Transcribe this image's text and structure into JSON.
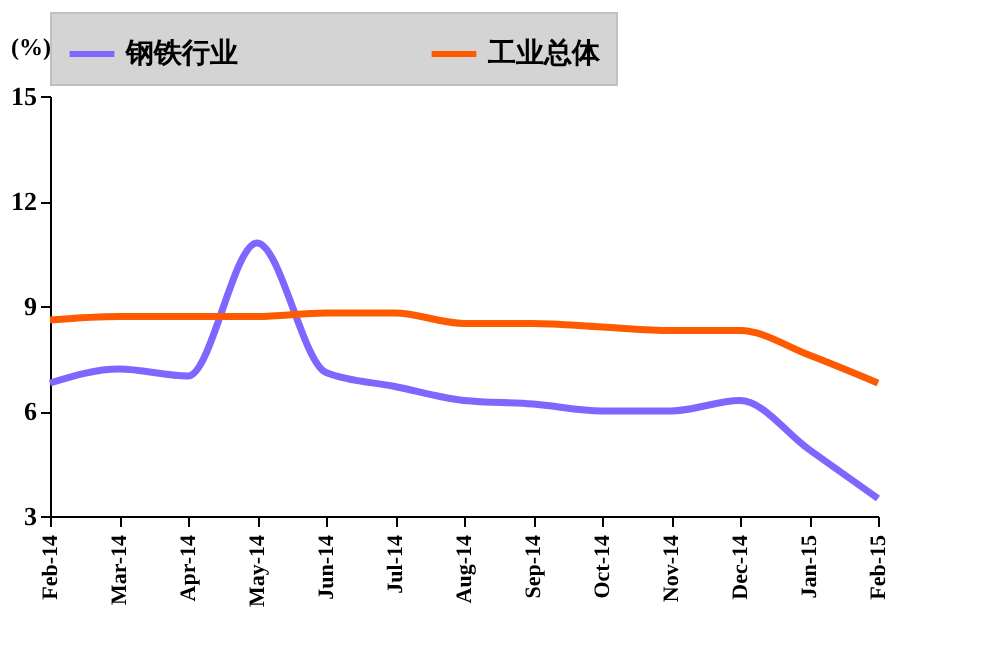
{
  "chart_data": {
    "type": "line",
    "ylabel": "(%)",
    "categories": [
      "Feb-14",
      "Mar-14",
      "Apr-14",
      "May-14",
      "Jun-14",
      "Jul-14",
      "Aug-14",
      "Sep-14",
      "Oct-14",
      "Nov-14",
      "Dec-14",
      "Jan-15",
      "Feb-15"
    ],
    "series": [
      {
        "name": "钢铁行业",
        "color": "#7f66ff",
        "values": [
          6.8,
          7.2,
          7.0,
          10.8,
          7.1,
          6.7,
          6.3,
          6.2,
          6.0,
          6.0,
          6.3,
          4.9,
          3.5
        ]
      },
      {
        "name": "工业总体",
        "color": "#ff5a00",
        "values": [
          8.6,
          8.7,
          8.7,
          8.7,
          8.8,
          8.8,
          8.5,
          8.5,
          8.4,
          8.3,
          8.3,
          7.6,
          6.8
        ]
      }
    ],
    "ylim": [
      3,
      15
    ],
    "yticks": [
      3,
      6,
      9,
      12,
      15
    ],
    "grid": false,
    "legend": "top",
    "marker": "none",
    "line_style": "solid"
  }
}
